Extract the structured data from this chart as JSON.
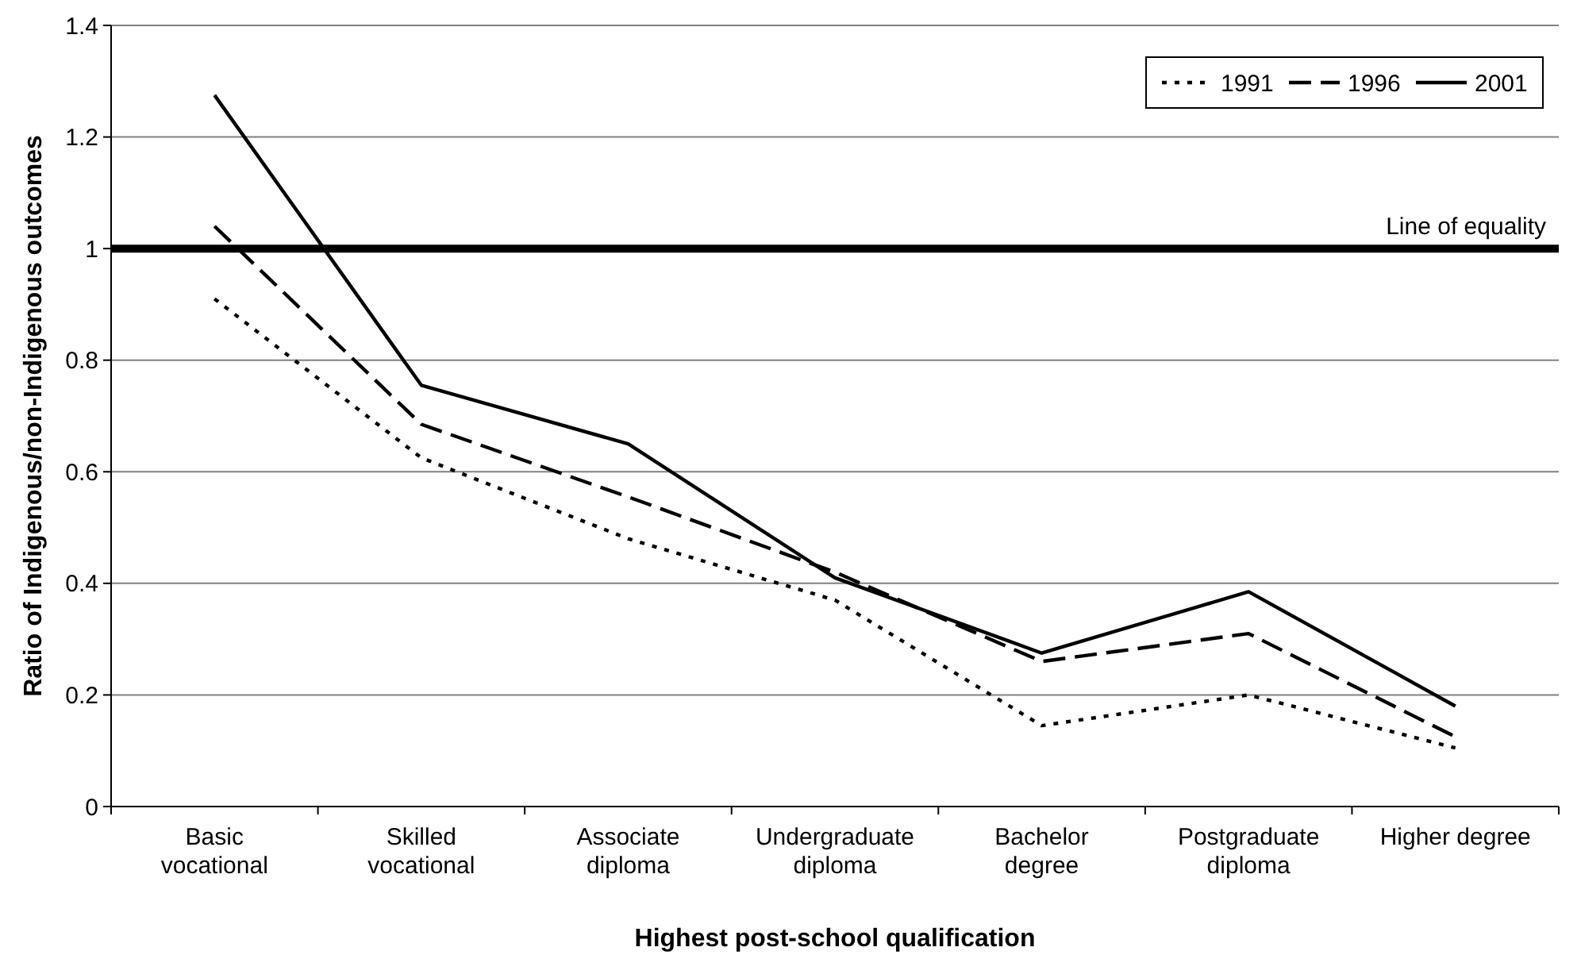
{
  "chart_data": {
    "type": "line",
    "xlabel": "Highest post-school qualification",
    "ylabel": "Ratio of Indigenous/non-Indigenous outcomes",
    "categories": [
      "Basic\nvocational",
      "Skilled\nvocational",
      "Associate\ndiploma",
      "Undergraduate\ndiploma",
      "Bachelor\ndegree",
      "Postgraduate\ndiploma",
      "Higher degree"
    ],
    "series": [
      {
        "name": "1991",
        "color": "#000000",
        "line_style": "dotted",
        "values": [
          0.91,
          0.625,
          0.48,
          0.37,
          0.145,
          0.2,
          0.105
        ]
      },
      {
        "name": "1996",
        "color": "#000000",
        "line_style": "dashed",
        "values": [
          1.04,
          0.685,
          0.555,
          0.42,
          0.26,
          0.31,
          0.125
        ]
      },
      {
        "name": "2001",
        "color": "#000000",
        "line_style": "solid",
        "values": [
          1.275,
          0.755,
          0.65,
          0.41,
          0.275,
          0.385,
          0.18
        ]
      }
    ],
    "ylim": [
      0,
      1.4
    ],
    "yticks": [
      0,
      0.2,
      0.4,
      0.6,
      0.8,
      1,
      1.2,
      1.4
    ],
    "grid": "y",
    "legend": "top right",
    "ref_lines": [
      {
        "axis": "y",
        "value": 1,
        "label": "Line of equality",
        "color": "#000000"
      }
    ]
  }
}
